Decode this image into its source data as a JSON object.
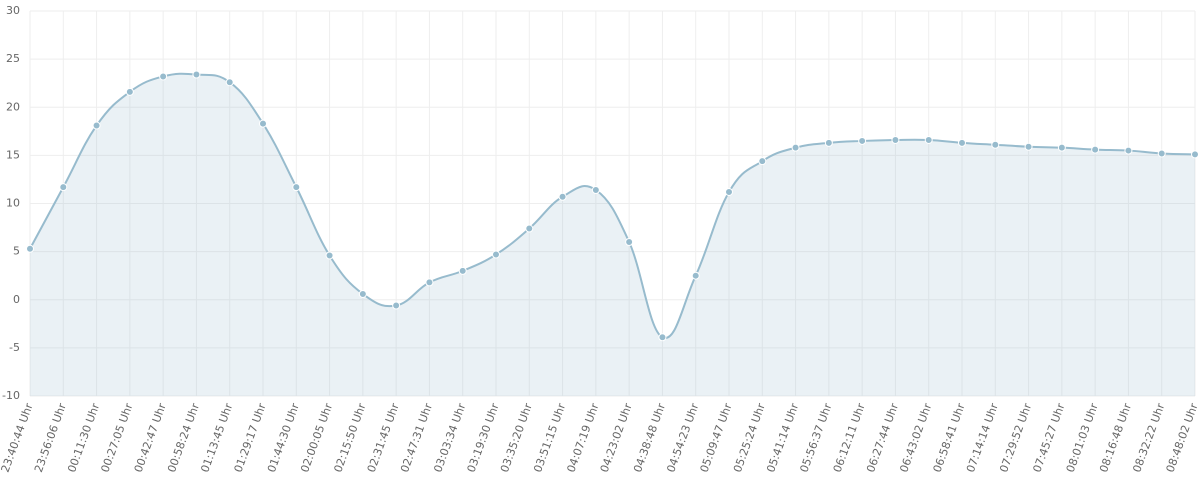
{
  "chart_data": {
    "type": "line",
    "categories": [
      "23:40:44 Uhr",
      "23:56:06 Uhr",
      "00:11:30 Uhr",
      "00:27:05 Uhr",
      "00:42:47 Uhr",
      "00:58:24 Uhr",
      "01:13:45 Uhr",
      "01:29:17 Uhr",
      "01:44:30 Uhr",
      "02:00:05 Uhr",
      "02:15:50 Uhr",
      "02:31:45 Uhr",
      "02:47:31 Uhr",
      "03:03:34 Uhr",
      "03:19:30 Uhr",
      "03:35:20 Uhr",
      "03:51:15 Uhr",
      "04:07:19 Uhr",
      "04:23:02 Uhr",
      "04:38:48 Uhr",
      "04:54:23 Uhr",
      "05:09:47 Uhr",
      "05:25:24 Uhr",
      "05:41:14 Uhr",
      "05:56:37 Uhr",
      "06:12:11 Uhr",
      "06:27:44 Uhr",
      "06:43:02 Uhr",
      "06:58:41 Uhr",
      "07:14:14 Uhr",
      "07:29:52 Uhr",
      "07:45:27 Uhr",
      "08:01:03 Uhr",
      "08:16:48 Uhr",
      "08:32:22 Uhr",
      "08:48:02 Uhr"
    ],
    "values": [
      5.3,
      11.7,
      18.1,
      21.6,
      23.2,
      23.4,
      22.6,
      18.3,
      11.7,
      4.6,
      0.6,
      -0.6,
      1.8,
      3.0,
      4.7,
      7.4,
      10.7,
      11.4,
      6.0,
      -3.9,
      2.5,
      11.2,
      14.4,
      15.8,
      16.3,
      16.5,
      16.6,
      16.6,
      16.3,
      16.1,
      15.9,
      15.8,
      15.6,
      15.5,
      15.2,
      15.1
    ],
    "color": "#97bbcd",
    "ylim": [
      -10,
      30
    ],
    "yticks": [
      -10,
      -5,
      0,
      5,
      10,
      15,
      20,
      25,
      30
    ],
    "grid": true
  }
}
